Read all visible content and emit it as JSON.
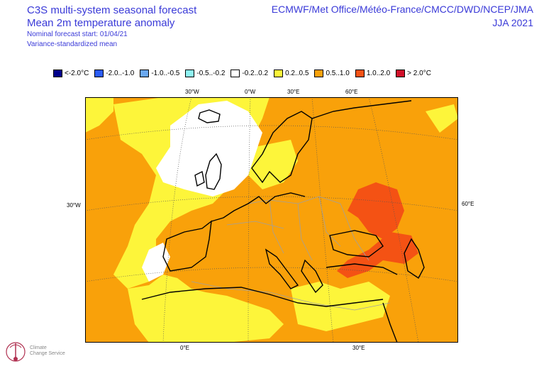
{
  "header": {
    "title_line1": "C3S multi-system seasonal forecast",
    "title_line2": "Mean 2m temperature anomaly",
    "nominal_start": "Nominal forecast start: 01/04/21",
    "variance_note": "Variance-standardized mean",
    "centres": "ECMWF/Met Office/Météo-France/CMCC/DWD/NCEP/JMA",
    "season": "JJA 2021"
  },
  "legend": [
    {
      "label": "<-2.0°C",
      "color": "#00008b"
    },
    {
      "label": "-2.0..-1.0",
      "color": "#2b5cf5"
    },
    {
      "label": "-1.0..-0.5",
      "color": "#6aa8f0"
    },
    {
      "label": "-0.5..-0.2",
      "color": "#8ff3f3"
    },
    {
      "label": "-0.2..0.2",
      "color": "#ffffff"
    },
    {
      "label": "0.2..0.5",
      "color": "#fdf53a"
    },
    {
      "label": "0.5..1.0",
      "color": "#f9a10a"
    },
    {
      "label": "1.0..2.0",
      "color": "#f45214"
    },
    {
      "label": "> 2.0°C",
      "color": "#d0102a"
    }
  ],
  "axes": {
    "top": [
      "30°W",
      "0°W",
      "30°E",
      "60°E"
    ],
    "bottom": [
      "0°E",
      "30°E"
    ],
    "left": "30°W",
    "right": "60°E"
  },
  "logo": {
    "line1": "Climate",
    "line2": "Change Service"
  },
  "colors": {
    "neutral": "#ffffff",
    "warm_low": "#fdf53a",
    "warm_mid": "#f9a10a",
    "warm_high": "#f45214",
    "coastline": "#000000",
    "borders": "#a0a0a0",
    "graticule": "#555555"
  }
}
